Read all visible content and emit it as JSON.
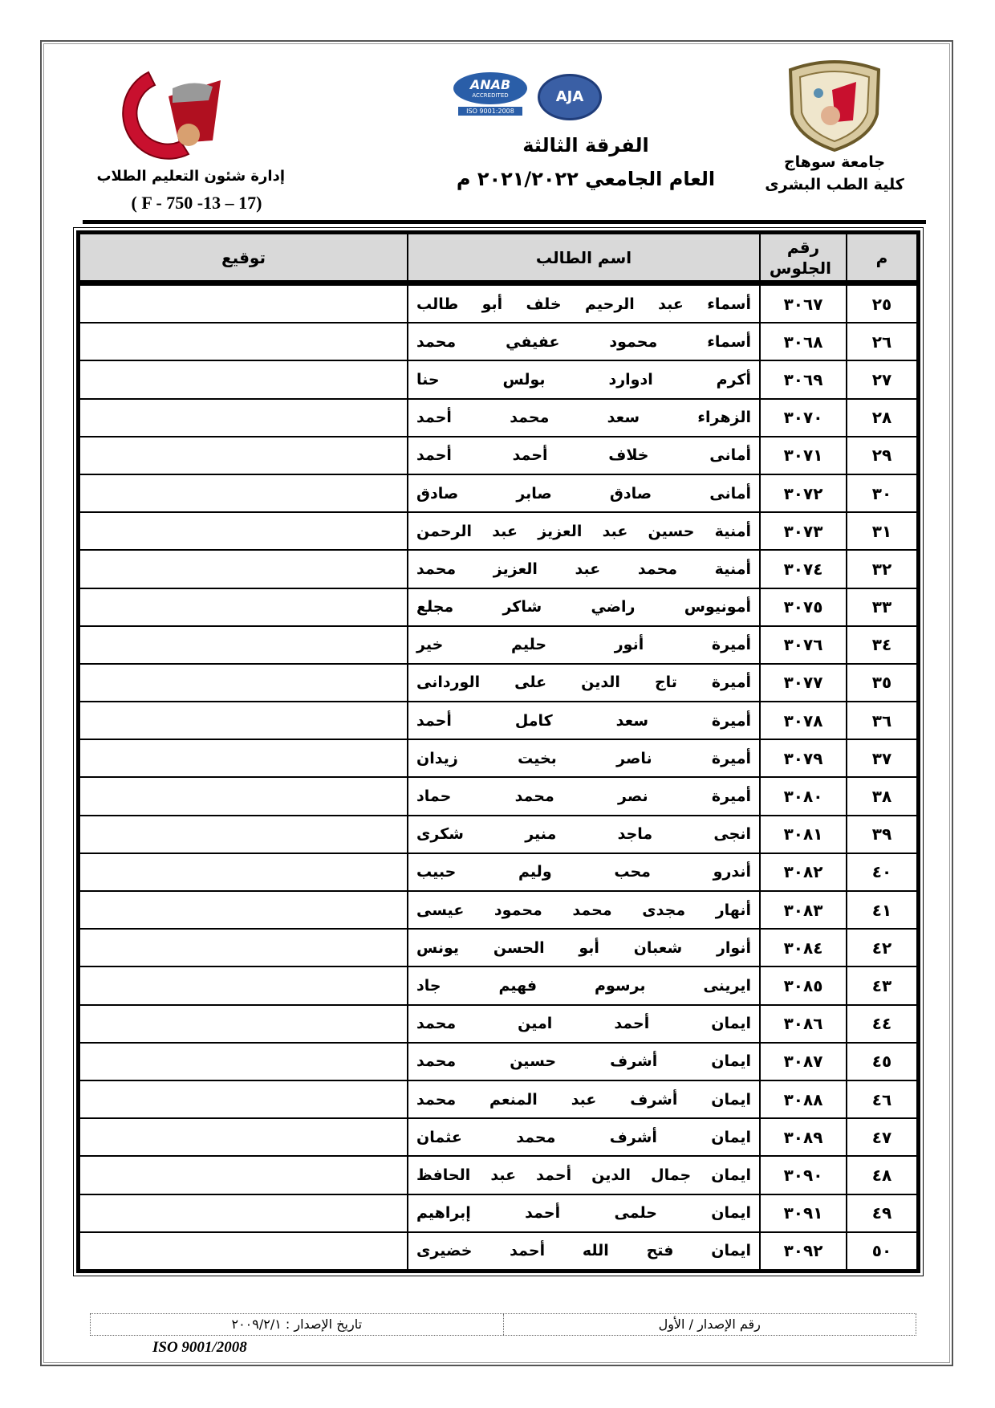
{
  "header": {
    "right_university": "جامعة سوهاج",
    "right_faculty": "كلية الطب البشرى",
    "center_level": "الفرقة الثالثة",
    "center_year": "العام الجامعي ٢٠٢١/٢٠٢٢ م",
    "left_department": "إدارة شئون التعليم الطلاب",
    "left_form_code": "( F - 750 -13 – 17)",
    "logo_left_text": "جامعة سوهاج كلية الطب",
    "badge_anab": "ANAB",
    "badge_anab_sub": "ACCREDITED",
    "badge_iso": "ISO 9001:2008",
    "badge_aja": "AJA"
  },
  "table": {
    "columns": [
      "م",
      "رقم الجلوس",
      "اسم الطالب",
      "توقيع"
    ],
    "rows": [
      {
        "no": "٢٥",
        "seat": "٣٠٦٧",
        "name": "أسماء عبد الرحيم خلف أبو طالب"
      },
      {
        "no": "٢٦",
        "seat": "٣٠٦٨",
        "name": "أسماء محمود عفيفي محمد"
      },
      {
        "no": "٢٧",
        "seat": "٣٠٦٩",
        "name": "أكرم ادوارد بولس حنا"
      },
      {
        "no": "٢٨",
        "seat": "٣٠٧٠",
        "name": "الزهراء سعد محمد أحمد"
      },
      {
        "no": "٢٩",
        "seat": "٣٠٧١",
        "name": "أمانى خلاف أحمد أحمد"
      },
      {
        "no": "٣٠",
        "seat": "٣٠٧٢",
        "name": "أمانى صادق صابر صادق"
      },
      {
        "no": "٣١",
        "seat": "٣٠٧٣",
        "name": "أمنية حسين عبد العزيز عبد الرحمن"
      },
      {
        "no": "٣٢",
        "seat": "٣٠٧٤",
        "name": "أمنية محمد عبد العزيز محمد"
      },
      {
        "no": "٣٣",
        "seat": "٣٠٧٥",
        "name": "أمونيوس راضي شاكر مجلع"
      },
      {
        "no": "٣٤",
        "seat": "٣٠٧٦",
        "name": "أميرة أنور حليم خير"
      },
      {
        "no": "٣٥",
        "seat": "٣٠٧٧",
        "name": "أميرة تاج الدين على الوردانى"
      },
      {
        "no": "٣٦",
        "seat": "٣٠٧٨",
        "name": "أميرة سعد كامل أحمد"
      },
      {
        "no": "٣٧",
        "seat": "٣٠٧٩",
        "name": "أميرة ناصر بخيت زيدان"
      },
      {
        "no": "٣٨",
        "seat": "٣٠٨٠",
        "name": "أميرة نصر محمد حماد"
      },
      {
        "no": "٣٩",
        "seat": "٣٠٨١",
        "name": "انجى ماجد منير شكرى"
      },
      {
        "no": "٤٠",
        "seat": "٣٠٨٢",
        "name": "أندرو محب وليم حبيب"
      },
      {
        "no": "٤١",
        "seat": "٣٠٨٣",
        "name": "أنهار مجدى محمد محمود عيسى"
      },
      {
        "no": "٤٢",
        "seat": "٣٠٨٤",
        "name": "أنوار شعبان أبو الحسن يونس"
      },
      {
        "no": "٤٣",
        "seat": "٣٠٨٥",
        "name": "ايرينى برسوم فهيم جاد"
      },
      {
        "no": "٤٤",
        "seat": "٣٠٨٦",
        "name": "ايمان أحمد امين محمد"
      },
      {
        "no": "٤٥",
        "seat": "٣٠٨٧",
        "name": "ايمان أشرف حسين محمد"
      },
      {
        "no": "٤٦",
        "seat": "٣٠٨٨",
        "name": "ايمان أشرف عبد المنعم محمد"
      },
      {
        "no": "٤٧",
        "seat": "٣٠٨٩",
        "name": "ايمان أشرف محمد عثمان"
      },
      {
        "no": "٤٨",
        "seat": "٣٠٩٠",
        "name": "ايمان جمال الدين أحمد عبد الحافظ"
      },
      {
        "no": "٤٩",
        "seat": "٣٠٩١",
        "name": "ايمان حلمى أحمد إبراهيم"
      },
      {
        "no": "٥٠",
        "seat": "٣٠٩٢",
        "name": "ايمان فتح الله أحمد خضيرى"
      }
    ]
  },
  "footer": {
    "issue_number": "رقم الإصدار / الأول",
    "issue_date": "تاريخ الإصدار : ٢٠٠٩/٢/١",
    "iso": "ISO 9001/2008"
  },
  "colors": {
    "header_fill": "#d9d9d9",
    "logo_red": "#c8102e",
    "crest_gold": "#b8a060"
  }
}
